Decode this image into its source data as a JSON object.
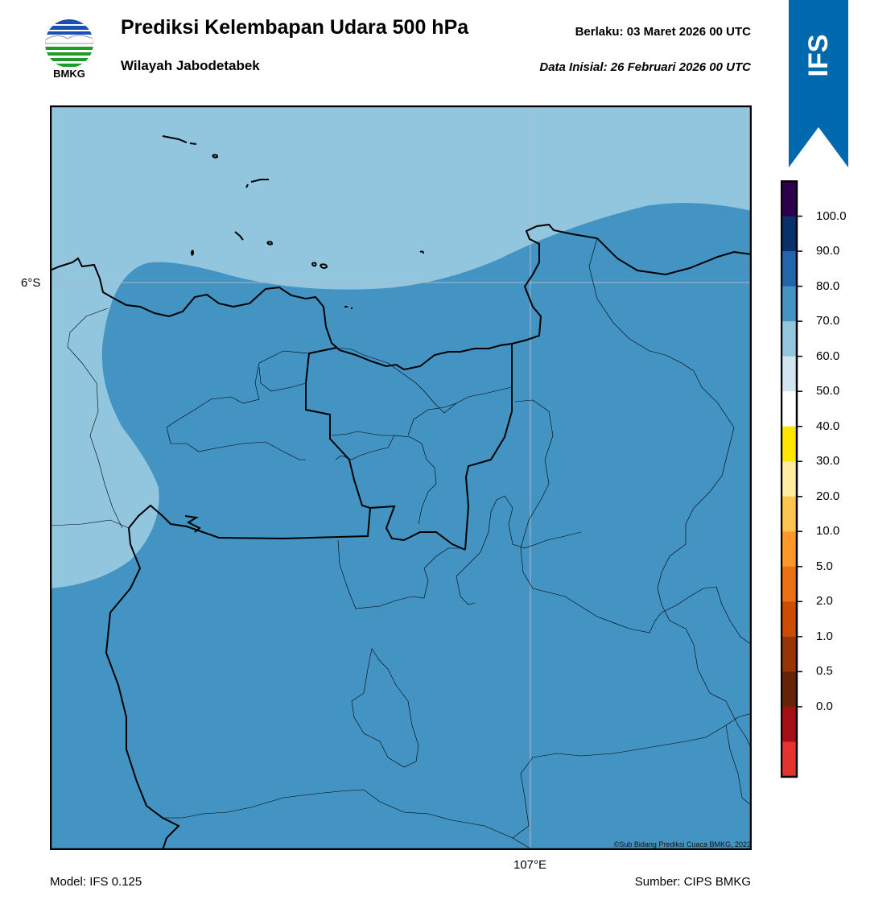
{
  "header": {
    "title": "Prediksi Kelembapan Udara 500 hPa",
    "region": "Wilayah Jabodetabek",
    "valid_time": "Berlaku:  03 Maret 2026 00 UTC",
    "initial_data": "Data Inisial:  26 Februari 2026 00 UTC"
  },
  "logo": {
    "text": "BMKG",
    "icon": "bmkg-logo-icon"
  },
  "badge": {
    "text": "IFS",
    "color": "#0068ad"
  },
  "map": {
    "lat_label": "6°S",
    "lon_label": "107°E",
    "credit": "©Sub Bidang Prediksi Cuaca BMKG, 2023",
    "fill_main": "#4393c3",
    "fill_light": "#92c5de"
  },
  "colorbar": {
    "labels": [
      "100.0",
      "90.0",
      "80.0",
      "70.0",
      "60.0",
      "50.0",
      "40.0",
      "30.0",
      "20.0",
      "10.0",
      "5.0",
      "2.0",
      "1.0",
      "0.5",
      "0.0"
    ],
    "colors_top_to_bottom": [
      "#2d004b",
      "#08306b",
      "#2166ac",
      "#4393c3",
      "#92c5de",
      "#d1e5f0",
      "#ffffff",
      "#ffe600",
      "#ffeda0",
      "#fec44f",
      "#fe9929",
      "#ec7014",
      "#cc4c02",
      "#993404",
      "#662506",
      "#a50f15",
      "#e3342f"
    ]
  },
  "footer": {
    "model": "Model: IFS 0.125",
    "source": "Sumber: CIPS BMKG"
  }
}
